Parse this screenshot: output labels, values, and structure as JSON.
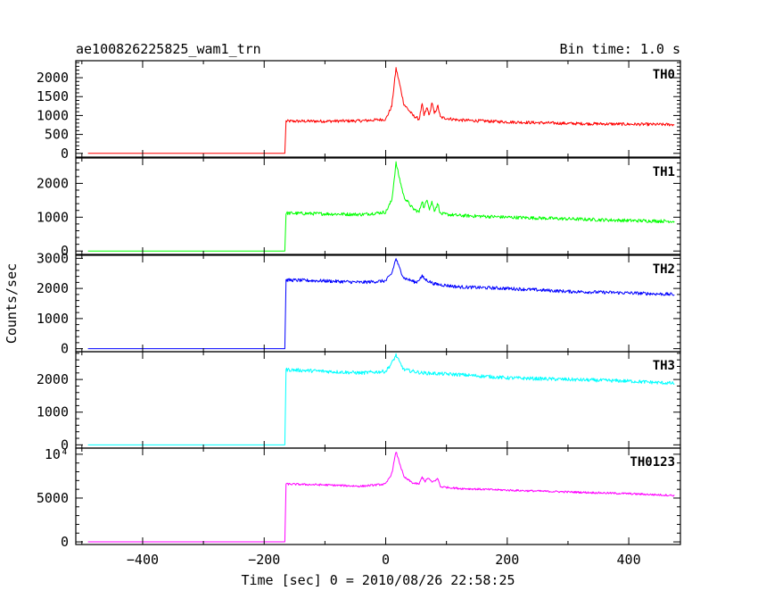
{
  "chart_data": {
    "type": "line",
    "title_left": "ae100826225825_wam1_trn",
    "title_right": "Bin time: 1.0 s",
    "xlabel": "Time [sec] 0 = 2010/08/26 22:58:25",
    "ylabel": "Counts/sec",
    "xlim": [
      -510,
      485
    ],
    "x_ticks": [
      -400,
      -200,
      0,
      200,
      400
    ],
    "x_tick_labels": [
      "−400",
      "−200",
      "0",
      "200",
      "400"
    ],
    "data_x_range": [
      -490,
      475
    ],
    "grid": false,
    "panels": [
      {
        "label": "TH0",
        "color": "#ff0000",
        "ylim": [
          -100,
          2450
        ],
        "y_ticks": [
          0,
          500,
          1000,
          1500,
          2000
        ],
        "y_tick_labels": [
          "0",
          "500",
          "1000",
          "1500",
          "2000"
        ],
        "profile": [
          [
            -490,
            0
          ],
          [
            -166,
            0
          ],
          [
            -164,
            850
          ],
          [
            -100,
            850
          ],
          [
            -40,
            860
          ],
          [
            0,
            900
          ],
          [
            10,
            1250
          ],
          [
            17,
            2250
          ],
          [
            22,
            1900
          ],
          [
            30,
            1300
          ],
          [
            45,
            1000
          ],
          [
            55,
            900
          ],
          [
            60,
            1300
          ],
          [
            63,
            1000
          ],
          [
            68,
            1200
          ],
          [
            72,
            1000
          ],
          [
            76,
            1350
          ],
          [
            80,
            1050
          ],
          [
            86,
            1250
          ],
          [
            90,
            950
          ],
          [
            120,
            880
          ],
          [
            200,
            830
          ],
          [
            300,
            790
          ],
          [
            400,
            770
          ],
          [
            475,
            760
          ]
        ],
        "noise": 40
      },
      {
        "label": "TH1",
        "color": "#00ff00",
        "ylim": [
          -100,
          2750
        ],
        "y_ticks": [
          0,
          1000,
          2000
        ],
        "y_tick_labels": [
          "0",
          "1000",
          "2000"
        ],
        "profile": [
          [
            -490,
            0
          ],
          [
            -166,
            0
          ],
          [
            -164,
            1120
          ],
          [
            -100,
            1100
          ],
          [
            -40,
            1080
          ],
          [
            0,
            1150
          ],
          [
            10,
            1500
          ],
          [
            17,
            2600
          ],
          [
            22,
            2200
          ],
          [
            30,
            1600
          ],
          [
            45,
            1250
          ],
          [
            55,
            1150
          ],
          [
            60,
            1500
          ],
          [
            63,
            1250
          ],
          [
            68,
            1550
          ],
          [
            72,
            1250
          ],
          [
            76,
            1450
          ],
          [
            80,
            1200
          ],
          [
            86,
            1400
          ],
          [
            90,
            1100
          ],
          [
            120,
            1050
          ],
          [
            200,
            1000
          ],
          [
            300,
            950
          ],
          [
            400,
            900
          ],
          [
            475,
            880
          ]
        ],
        "noise": 50
      },
      {
        "label": "TH2",
        "color": "#0000ff",
        "ylim": [
          -100,
          3100
        ],
        "y_ticks": [
          0,
          1000,
          2000,
          3000
        ],
        "y_tick_labels": [
          "0",
          "1000",
          "2000",
          "3000"
        ],
        "profile": [
          [
            -490,
            0
          ],
          [
            -166,
            0
          ],
          [
            -164,
            2280
          ],
          [
            -100,
            2250
          ],
          [
            -40,
            2200
          ],
          [
            0,
            2250
          ],
          [
            10,
            2500
          ],
          [
            17,
            3000
          ],
          [
            22,
            2700
          ],
          [
            30,
            2350
          ],
          [
            50,
            2200
          ],
          [
            60,
            2400
          ],
          [
            65,
            2300
          ],
          [
            80,
            2150
          ],
          [
            120,
            2050
          ],
          [
            200,
            2000
          ],
          [
            300,
            1900
          ],
          [
            400,
            1850
          ],
          [
            475,
            1800
          ]
        ],
        "noise": 55
      },
      {
        "label": "TH3",
        "color": "#00ffff",
        "ylim": [
          -100,
          2850
        ],
        "y_ticks": [
          0,
          1000,
          2000
        ],
        "y_tick_labels": [
          "0",
          "1000",
          "2000"
        ],
        "profile": [
          [
            -490,
            0
          ],
          [
            -166,
            0
          ],
          [
            -164,
            2300
          ],
          [
            -100,
            2250
          ],
          [
            -40,
            2200
          ],
          [
            0,
            2250
          ],
          [
            10,
            2500
          ],
          [
            17,
            2750
          ],
          [
            22,
            2550
          ],
          [
            30,
            2300
          ],
          [
            60,
            2200
          ],
          [
            120,
            2150
          ],
          [
            200,
            2050
          ],
          [
            300,
            2000
          ],
          [
            400,
            1950
          ],
          [
            475,
            1880
          ]
        ],
        "noise": 55
      },
      {
        "label": "TH0123",
        "color": "#ff00ff",
        "ylim": [
          -300,
          10700
        ],
        "y_ticks": [
          0,
          5000,
          10000
        ],
        "y_tick_labels": [
          "0",
          "5000",
          "10⁴"
        ],
        "profile": [
          [
            -490,
            0
          ],
          [
            -166,
            0
          ],
          [
            -164,
            6600
          ],
          [
            -100,
            6500
          ],
          [
            -40,
            6350
          ],
          [
            0,
            6600
          ],
          [
            10,
            7800
          ],
          [
            17,
            10300
          ],
          [
            22,
            9200
          ],
          [
            30,
            7400
          ],
          [
            45,
            6700
          ],
          [
            55,
            6600
          ],
          [
            60,
            7400
          ],
          [
            65,
            6900
          ],
          [
            70,
            7300
          ],
          [
            76,
            6800
          ],
          [
            86,
            7200
          ],
          [
            90,
            6300
          ],
          [
            120,
            6100
          ],
          [
            200,
            5900
          ],
          [
            300,
            5700
          ],
          [
            400,
            5500
          ],
          [
            475,
            5300
          ]
        ],
        "noise": 110
      }
    ]
  }
}
